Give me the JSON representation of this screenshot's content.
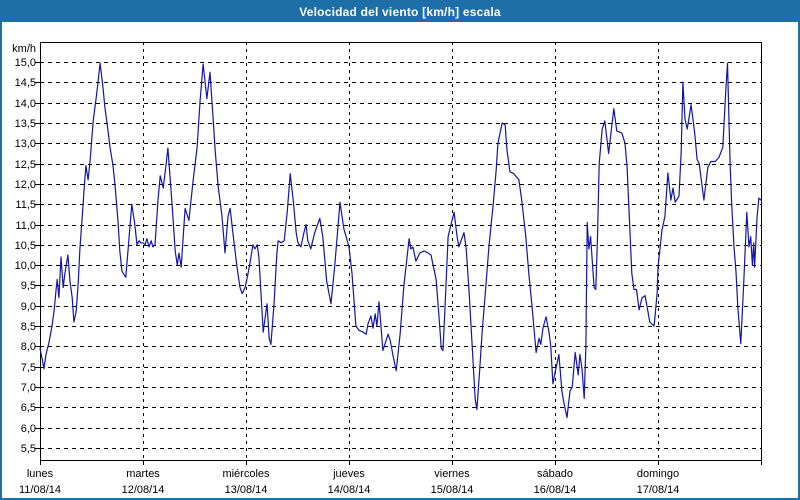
{
  "title": "Velocidad del viento [km/h] escala",
  "colors": {
    "frame": "#1e6fa8",
    "title_text": "#ffffff",
    "line": "#1414a8",
    "grid": "#000000",
    "background": "#ffffff",
    "axis_text": "#000000"
  },
  "y_axis": {
    "unit": "km/h",
    "min": 5.5,
    "max": 15.0,
    "step": 0.5,
    "tick_labels": [
      "15,0",
      "14,5",
      "14,0",
      "13,5",
      "13,0",
      "12,5",
      "12,0",
      "11,5",
      "11,0",
      "10,5",
      "10,0",
      "9,5",
      "9,0",
      "8,5",
      "8,0",
      "7,5",
      "7,0",
      "6,5",
      "6,0",
      "5,5"
    ]
  },
  "x_axis": {
    "days": [
      {
        "name": "lunes",
        "date": "11/08/14"
      },
      {
        "name": "martes",
        "date": "12/08/14"
      },
      {
        "name": "miércoles",
        "date": "13/08/14"
      },
      {
        "name": "jueves",
        "date": "14/08/14"
      },
      {
        "name": "viernes",
        "date": "15/08/14"
      },
      {
        "name": "sábado",
        "date": "16/08/14"
      },
      {
        "name": "domingo",
        "date": "17/08/14"
      }
    ]
  },
  "chart_data": {
    "type": "line",
    "title": "Velocidad del viento [km/h] escala",
    "xlabel": "",
    "ylabel": "km/h",
    "x_unit": "hours from Monday 11/08/14 00:00",
    "xlim": [
      0,
      168
    ],
    "ylim": [
      5.5,
      15.0
    ],
    "y_tick_step": 0.5,
    "grid": true,
    "hours_per_day": 24,
    "series": [
      {
        "name": "Velocidad del viento [km/h]",
        "color": "#1414a8",
        "points": [
          [
            0,
            7.95
          ],
          [
            0.5,
            7.7
          ],
          [
            0.9,
            7.45
          ],
          [
            1.4,
            7.8
          ],
          [
            2.1,
            8.1
          ],
          [
            2.8,
            8.5
          ],
          [
            3.3,
            8.9
          ],
          [
            3.7,
            9.35
          ],
          [
            4,
            9.65
          ],
          [
            4.4,
            9.2
          ],
          [
            4.9,
            10.2
          ],
          [
            5.4,
            9.45
          ],
          [
            5.8,
            9.8
          ],
          [
            6.5,
            10.25
          ],
          [
            7,
            9.6
          ],
          [
            7.5,
            9.2
          ],
          [
            7.9,
            8.6
          ],
          [
            8.4,
            8.85
          ],
          [
            8.9,
            9.55
          ],
          [
            9.3,
            10.4
          ],
          [
            9.8,
            11.15
          ],
          [
            10.3,
            11.9
          ],
          [
            10.7,
            12.45
          ],
          [
            11.2,
            12.1
          ],
          [
            11.7,
            12.6
          ],
          [
            12.4,
            13.55
          ],
          [
            13.3,
            14.3
          ],
          [
            14,
            14.97
          ],
          [
            14.7,
            14.35
          ],
          [
            15.1,
            13.9
          ],
          [
            15.8,
            13.35
          ],
          [
            16.3,
            12.9
          ],
          [
            17,
            12.45
          ],
          [
            17.5,
            11.95
          ],
          [
            18.2,
            11.05
          ],
          [
            18.6,
            10.35
          ],
          [
            19.1,
            9.85
          ],
          [
            20,
            9.7
          ],
          [
            20.7,
            10.6
          ],
          [
            21.4,
            11.5
          ],
          [
            22.1,
            11
          ],
          [
            22.6,
            10.5
          ],
          [
            23.1,
            10.6
          ],
          [
            23.5,
            10.55
          ],
          [
            24,
            10.55
          ],
          [
            24.5,
            10.5
          ],
          [
            24.9,
            10.65
          ],
          [
            25.4,
            10.45
          ],
          [
            25.9,
            10.6
          ],
          [
            26.3,
            10.45
          ],
          [
            26.8,
            10.5
          ],
          [
            27.5,
            11.6
          ],
          [
            28,
            12.2
          ],
          [
            28.7,
            11.9
          ],
          [
            29.4,
            12.5
          ],
          [
            29.8,
            12.88
          ],
          [
            30.8,
            11.45
          ],
          [
            31.5,
            10.35
          ],
          [
            32,
            10
          ],
          [
            32.4,
            10.3
          ],
          [
            32.9,
            9.95
          ],
          [
            33.8,
            11.4
          ],
          [
            34.7,
            11.1
          ],
          [
            35.7,
            12.1
          ],
          [
            36.6,
            12.9
          ],
          [
            37.3,
            14.05
          ],
          [
            38,
            14.95
          ],
          [
            38.9,
            14.1
          ],
          [
            39.6,
            14.75
          ],
          [
            40.3,
            13.65
          ],
          [
            40.8,
            12.85
          ],
          [
            41.5,
            11.95
          ],
          [
            42.4,
            11.2
          ],
          [
            43.1,
            10.3
          ],
          [
            43.8,
            11.2
          ],
          [
            44.3,
            11.4
          ],
          [
            45,
            10.75
          ],
          [
            45.9,
            9.95
          ],
          [
            46.6,
            9.45
          ],
          [
            47.1,
            9.3
          ],
          [
            47.8,
            9.45
          ],
          [
            48,
            9.55
          ],
          [
            48.5,
            9.8
          ],
          [
            49,
            10.1
          ],
          [
            49.6,
            10.5
          ],
          [
            50.1,
            10.4
          ],
          [
            50.6,
            10.5
          ],
          [
            51,
            10.2
          ],
          [
            51.5,
            9.3
          ],
          [
            52,
            8.35
          ],
          [
            52.9,
            9.05
          ],
          [
            53.4,
            8.2
          ],
          [
            53.8,
            8.05
          ],
          [
            54.5,
            9
          ],
          [
            55.2,
            10.3
          ],
          [
            55.5,
            10.6
          ],
          [
            56.2,
            10.55
          ],
          [
            56.9,
            10.6
          ],
          [
            57.6,
            11.3
          ],
          [
            58.3,
            12.25
          ],
          [
            59,
            11.6
          ],
          [
            59.7,
            10.8
          ],
          [
            60.1,
            10.55
          ],
          [
            60.8,
            10.45
          ],
          [
            61.5,
            10.8
          ],
          [
            62,
            11
          ],
          [
            62.4,
            10.6
          ],
          [
            63.1,
            10.4
          ],
          [
            64,
            10.8
          ],
          [
            65.2,
            11.15
          ],
          [
            65.9,
            10.7
          ],
          [
            66.8,
            9.6
          ],
          [
            67.8,
            9.05
          ],
          [
            68.7,
            10
          ],
          [
            69.9,
            11.55
          ],
          [
            70.8,
            10.9
          ],
          [
            72,
            10.45
          ],
          [
            72.7,
            9.8
          ],
          [
            73.6,
            8.5
          ],
          [
            74.3,
            8.4
          ],
          [
            75.3,
            8.35
          ],
          [
            76,
            8.3
          ],
          [
            76.4,
            8.55
          ],
          [
            77.1,
            8.75
          ],
          [
            77.6,
            8.45
          ],
          [
            78.1,
            8.8
          ],
          [
            78.5,
            8.5
          ],
          [
            79,
            9.1
          ],
          [
            79.9,
            7.9
          ],
          [
            81.1,
            8.3
          ],
          [
            81.6,
            8.15
          ],
          [
            82.3,
            7.75
          ],
          [
            83,
            7.4
          ],
          [
            83.9,
            8.3
          ],
          [
            84.8,
            9.5
          ],
          [
            86,
            10.65
          ],
          [
            86.4,
            10.4
          ],
          [
            86.9,
            10.45
          ],
          [
            87.6,
            10.1
          ],
          [
            88.5,
            10.3
          ],
          [
            89.5,
            10.35
          ],
          [
            90.4,
            10.3
          ],
          [
            91.1,
            10.25
          ],
          [
            92.3,
            9.65
          ],
          [
            93,
            8.7
          ],
          [
            93.5,
            7.95
          ],
          [
            93.9,
            7.9
          ],
          [
            94.6,
            9.5
          ],
          [
            95.1,
            10.7
          ],
          [
            96,
            11.1
          ],
          [
            96.5,
            11.3
          ],
          [
            97.2,
            10.7
          ],
          [
            97.6,
            10.45
          ],
          [
            98.1,
            10.6
          ],
          [
            98.8,
            10.8
          ],
          [
            99.3,
            10.4
          ],
          [
            100,
            9.3
          ],
          [
            100.7,
            8
          ],
          [
            101.4,
            6.7
          ],
          [
            101.8,
            6.45
          ],
          [
            102.5,
            7.5
          ],
          [
            103,
            8.3
          ],
          [
            103.9,
            9.5
          ],
          [
            104.6,
            10.45
          ],
          [
            105.6,
            11.5
          ],
          [
            106.3,
            12.35
          ],
          [
            106.7,
            13
          ],
          [
            107.7,
            13.5
          ],
          [
            108.4,
            13.45
          ],
          [
            108.8,
            12.85
          ],
          [
            109.5,
            12.3
          ],
          [
            110.4,
            12.25
          ],
          [
            111.6,
            12.1
          ],
          [
            112.3,
            11.55
          ],
          [
            113.2,
            10.7
          ],
          [
            113.9,
            9.8
          ],
          [
            114.6,
            9.05
          ],
          [
            115.6,
            7.85
          ],
          [
            116.3,
            8.2
          ],
          [
            116.7,
            8.05
          ],
          [
            117.2,
            8.45
          ],
          [
            117.9,
            8.73
          ],
          [
            118.6,
            8.35
          ],
          [
            119,
            8.03
          ],
          [
            119.5,
            7.08
          ],
          [
            120,
            7.35
          ],
          [
            120.9,
            7.8
          ],
          [
            121.6,
            6.9
          ],
          [
            122.1,
            6.6
          ],
          [
            122.8,
            6.25
          ],
          [
            123.5,
            6.9
          ],
          [
            124,
            7
          ],
          [
            124.7,
            7.85
          ],
          [
            125.4,
            7.3
          ],
          [
            125.8,
            7.8
          ],
          [
            126.3,
            7.45
          ],
          [
            126.8,
            6.72
          ],
          [
            127.2,
            8
          ],
          [
            127.5,
            11.05
          ],
          [
            127.9,
            10.4
          ],
          [
            128.3,
            10.7
          ],
          [
            129.1,
            9.45
          ],
          [
            129.5,
            9.4
          ],
          [
            129.9,
            10.7
          ],
          [
            130.3,
            12.5
          ],
          [
            131,
            13.35
          ],
          [
            131.6,
            13.55
          ],
          [
            132.5,
            12.75
          ],
          [
            133.7,
            13.85
          ],
          [
            134.4,
            13.3
          ],
          [
            135.6,
            13.25
          ],
          [
            136.3,
            13
          ],
          [
            136.8,
            12.4
          ],
          [
            137.5,
            10.75
          ],
          [
            137.9,
            9.8
          ],
          [
            138.4,
            9.4
          ],
          [
            139,
            9.4
          ],
          [
            139.6,
            8.9
          ],
          [
            140.3,
            9.2
          ],
          [
            141,
            9.25
          ],
          [
            142.1,
            8.6
          ],
          [
            143.1,
            8.5
          ],
          [
            143.8,
            9.3
          ],
          [
            144,
            9.95
          ],
          [
            144.9,
            10.85
          ],
          [
            145.6,
            11.2
          ],
          [
            146.3,
            12.27
          ],
          [
            147,
            11.6
          ],
          [
            147.5,
            11.9
          ],
          [
            148,
            11.55
          ],
          [
            148.9,
            11.7
          ],
          [
            149.4,
            12.8
          ],
          [
            149.8,
            14.5
          ],
          [
            150.3,
            13.6
          ],
          [
            150.8,
            13.35
          ],
          [
            151.2,
            13.6
          ],
          [
            151.7,
            13.95
          ],
          [
            152.2,
            13.55
          ],
          [
            152.6,
            13.2
          ],
          [
            153.1,
            12.6
          ],
          [
            153.6,
            12.5
          ],
          [
            154.7,
            11.6
          ],
          [
            155.6,
            12.4
          ],
          [
            156.3,
            12.55
          ],
          [
            157.3,
            12.55
          ],
          [
            158.2,
            12.65
          ],
          [
            159.1,
            12.9
          ],
          [
            159.8,
            14.3
          ],
          [
            160.2,
            14.97
          ],
          [
            160.8,
            12.5
          ],
          [
            161.2,
            11.45
          ],
          [
            161.7,
            10.45
          ],
          [
            162.2,
            9.8
          ],
          [
            162.6,
            8.97
          ],
          [
            163,
            8.45
          ],
          [
            163.3,
            8.07
          ],
          [
            164,
            9.6
          ],
          [
            164.7,
            11.3
          ],
          [
            165.2,
            10.45
          ],
          [
            165.6,
            10.7
          ],
          [
            166,
            10
          ],
          [
            166.3,
            10.55
          ],
          [
            166.5,
            9.95
          ],
          [
            167.1,
            11.2
          ],
          [
            167.5,
            11.65
          ],
          [
            168,
            11.6
          ]
        ]
      }
    ]
  }
}
